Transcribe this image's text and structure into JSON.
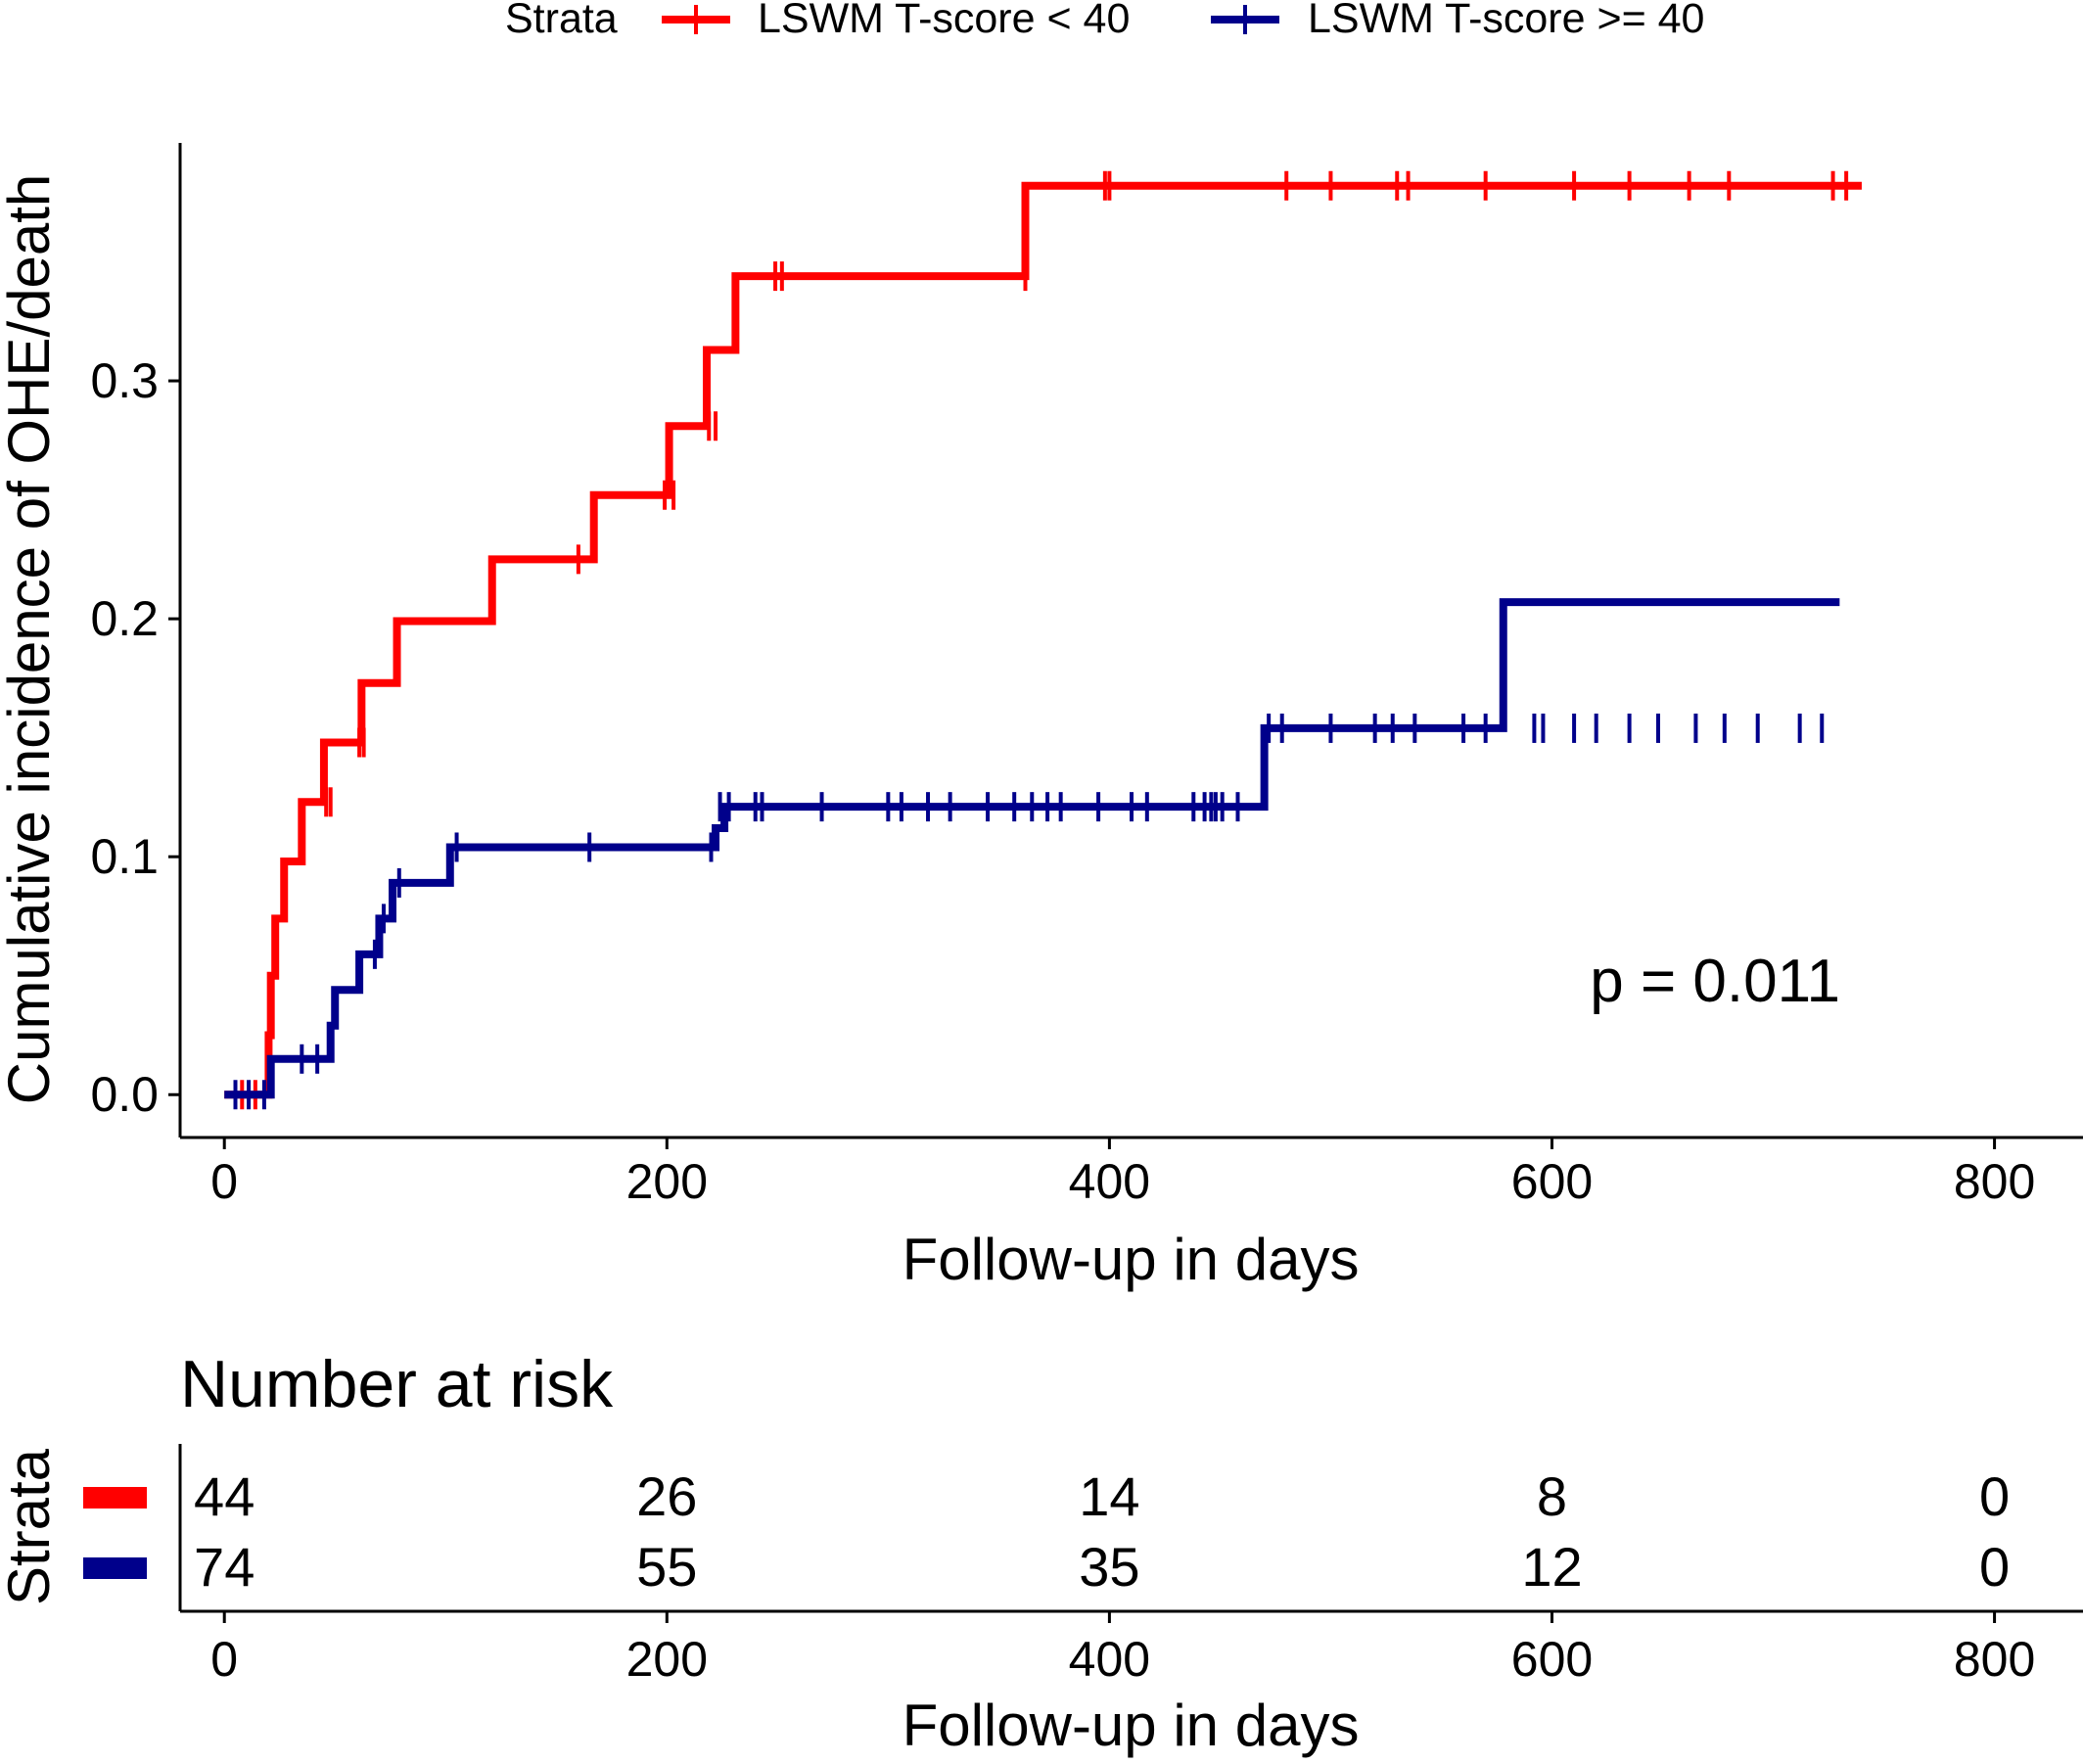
{
  "chart_data": {
    "type": "line",
    "subtype": "step",
    "legend": {
      "title": "Strata",
      "placement": "top"
    },
    "series": [
      {
        "name": "LSWM T-score < 40",
        "color": "#ff0000",
        "steps": [
          [
            0,
            0
          ],
          [
            20,
            0.025
          ],
          [
            21,
            0.05
          ],
          [
            23,
            0.074
          ],
          [
            27,
            0.098
          ],
          [
            35,
            0.123
          ],
          [
            45,
            0.148
          ],
          [
            62,
            0.173
          ],
          [
            78,
            0.199
          ],
          [
            121,
            0.225
          ],
          [
            167,
            0.252
          ],
          [
            201,
            0.281
          ],
          [
            218,
            0.313
          ],
          [
            231,
            0.344
          ],
          [
            362,
            0.382
          ],
          [
            740,
            0.382
          ]
        ],
        "censors": [
          [
            8,
            0
          ],
          [
            14,
            0
          ],
          [
            46,
            0.123
          ],
          [
            48,
            0.123
          ],
          [
            61,
            0.148
          ],
          [
            63,
            0.148
          ],
          [
            160,
            0.225
          ],
          [
            199,
            0.252
          ],
          [
            203,
            0.252
          ],
          [
            219,
            0.281
          ],
          [
            222,
            0.281
          ],
          [
            249,
            0.344
          ],
          [
            252,
            0.344
          ],
          [
            362,
            0.344
          ],
          [
            398,
            0.382
          ],
          [
            400,
            0.382
          ],
          [
            480,
            0.382
          ],
          [
            500,
            0.382
          ],
          [
            530,
            0.382
          ],
          [
            535,
            0.382
          ],
          [
            570,
            0.382
          ],
          [
            610,
            0.382
          ],
          [
            635,
            0.382
          ],
          [
            662,
            0.382
          ],
          [
            680,
            0.382
          ],
          [
            727,
            0.382
          ],
          [
            733,
            0.382
          ]
        ]
      },
      {
        "name": "LSWM T-score >= 40",
        "color": "#00008b",
        "steps": [
          [
            0,
            0
          ],
          [
            21,
            0.015
          ],
          [
            48,
            0.029
          ],
          [
            50,
            0.044
          ],
          [
            61,
            0.059
          ],
          [
            70,
            0.074
          ],
          [
            76,
            0.089
          ],
          [
            102,
            0.104
          ],
          [
            222,
            0.112
          ],
          [
            226,
            0.121
          ],
          [
            470,
            0.154
          ],
          [
            578,
            0.207
          ],
          [
            730,
            0.207
          ]
        ],
        "censors": [
          [
            5,
            0
          ],
          [
            11,
            0
          ],
          [
            18,
            0
          ],
          [
            35,
            0.015
          ],
          [
            42,
            0.015
          ],
          [
            68,
            0.059
          ],
          [
            72,
            0.074
          ],
          [
            79,
            0.089
          ],
          [
            105,
            0.104
          ],
          [
            165,
            0.104
          ],
          [
            220,
            0.104
          ],
          [
            224,
            0.121
          ],
          [
            228,
            0.121
          ],
          [
            240,
            0.121
          ],
          [
            243,
            0.121
          ],
          [
            270,
            0.121
          ],
          [
            300,
            0.121
          ],
          [
            306,
            0.121
          ],
          [
            318,
            0.121
          ],
          [
            328,
            0.121
          ],
          [
            345,
            0.121
          ],
          [
            357,
            0.121
          ],
          [
            365,
            0.121
          ],
          [
            372,
            0.121
          ],
          [
            378,
            0.121
          ],
          [
            395,
            0.121
          ],
          [
            410,
            0.121
          ],
          [
            417,
            0.121
          ],
          [
            438,
            0.121
          ],
          [
            443,
            0.121
          ],
          [
            446,
            0.121
          ],
          [
            448,
            0.121
          ],
          [
            451,
            0.121
          ],
          [
            458,
            0.121
          ],
          [
            472,
            0.154
          ],
          [
            478,
            0.154
          ],
          [
            500,
            0.154
          ],
          [
            520,
            0.154
          ],
          [
            528,
            0.154
          ],
          [
            538,
            0.154
          ],
          [
            560,
            0.154
          ],
          [
            570,
            0.154
          ],
          [
            592,
            0.154
          ],
          [
            596,
            0.154
          ],
          [
            610,
            0.154
          ],
          [
            620,
            0.154
          ],
          [
            635,
            0.154
          ],
          [
            648,
            0.154
          ],
          [
            665,
            0.154
          ],
          [
            678,
            0.154
          ],
          [
            693,
            0.154
          ],
          [
            712,
            0.154
          ],
          [
            722,
            0.154
          ]
        ]
      }
    ],
    "xlabel": "Follow-up in days",
    "ylabel": "Cumulative incidence of OHE/death",
    "xlim": [
      -20,
      840
    ],
    "ylim": [
      -0.018,
      0.4
    ],
    "xticks": [
      0,
      200,
      400,
      600,
      800
    ],
    "yticks": [
      0.0,
      0.1,
      0.2,
      0.3
    ],
    "ytick_labels": [
      "0.0",
      "0.1",
      "0.2",
      "0.3"
    ],
    "annotation": "p = 0.011",
    "grid": false,
    "risk_table": {
      "title": "Number at risk",
      "ylabel": "Strata",
      "xlabel": "Follow-up in days",
      "times": [
        0,
        200,
        400,
        600,
        800
      ],
      "rows": [
        {
          "color": "#ff0000",
          "counts": [
            "44",
            "26",
            "14",
            "8",
            "0"
          ]
        },
        {
          "color": "#00008b",
          "counts": [
            "74",
            "55",
            "35",
            "12",
            "0"
          ]
        }
      ]
    }
  }
}
